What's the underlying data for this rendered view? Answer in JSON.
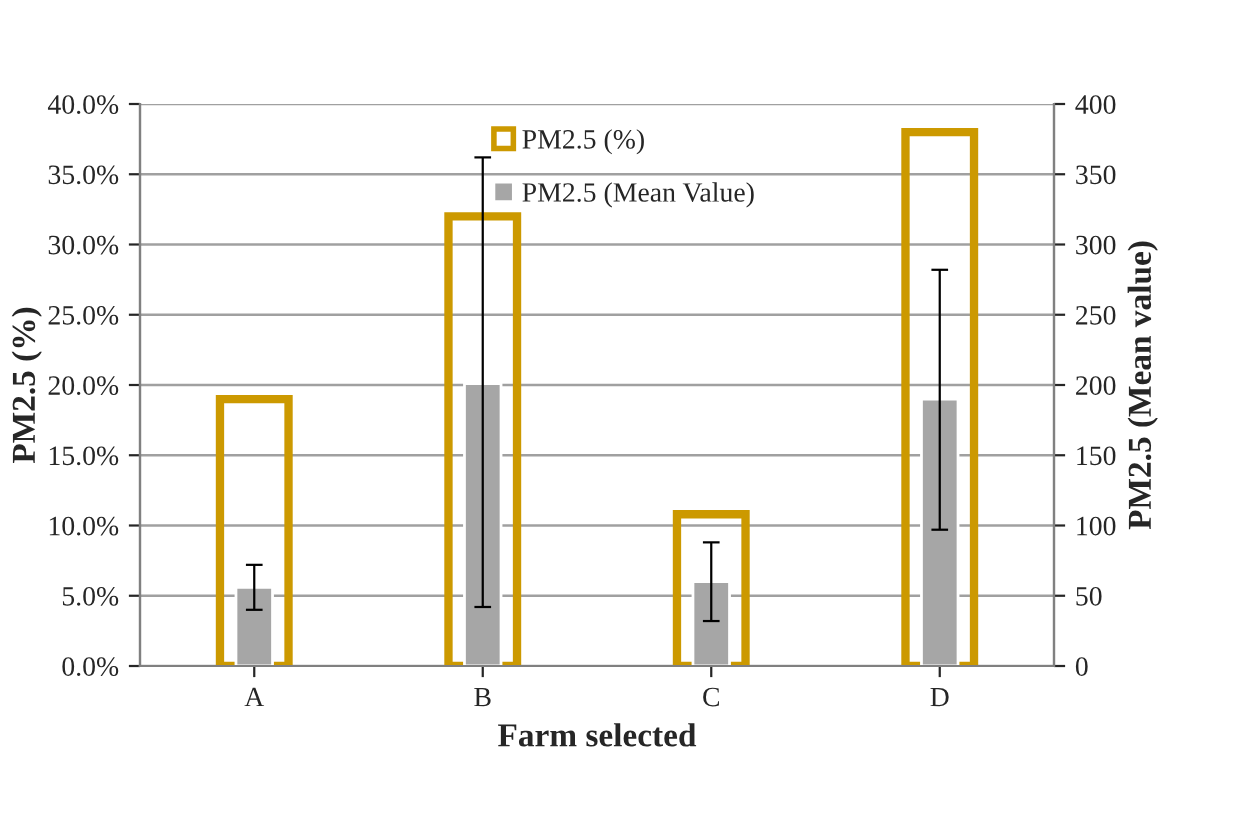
{
  "chart_data": {
    "type": "bar",
    "xlabel": "Farm selected",
    "ylabel": "PM2.5 (%)",
    "y2label": "PM2.5 (Mean value)",
    "categories": [
      "A",
      "B",
      "C",
      "D"
    ],
    "series": [
      {
        "name": "PM2.5 (%)",
        "color": "#cc9900",
        "axis": "y",
        "values": [
          19.0,
          32.0,
          10.8,
          38.0
        ]
      },
      {
        "name": "PM2.5 (Mean Value)",
        "color": "#a6a6a6",
        "axis": "y2",
        "values": [
          56,
          201,
          60,
          190
        ],
        "errors": [
          [
            40,
            72
          ],
          [
            42,
            362
          ],
          [
            32,
            88
          ],
          [
            97,
            282
          ]
        ]
      }
    ],
    "ylim": [
      0,
      40
    ],
    "yticks": [
      {
        "value": 0,
        "label": "0.0%"
      },
      {
        "value": 5,
        "label": "5.0%"
      },
      {
        "value": 10,
        "label": "10.0%"
      },
      {
        "value": 15,
        "label": "15.0%"
      },
      {
        "value": 20,
        "label": "20.0%"
      },
      {
        "value": 25,
        "label": "25.0%"
      },
      {
        "value": 30,
        "label": "30.0%"
      },
      {
        "value": 35,
        "label": "35.0%"
      },
      {
        "value": 40,
        "label": "40.0%"
      }
    ],
    "y2lim": [
      0,
      400
    ],
    "y2ticks": [
      0,
      50,
      100,
      150,
      200,
      250,
      300,
      350,
      400
    ],
    "grid": "y",
    "legend": "top"
  }
}
